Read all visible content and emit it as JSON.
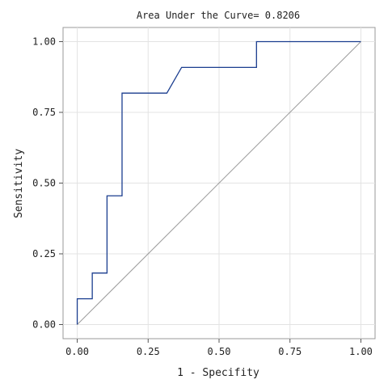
{
  "chart_data": {
    "type": "line",
    "title": "Area Under the Curve= 0.8206",
    "xlabel": "1 - Specifity",
    "ylabel": "Sensitivity",
    "xlim": [
      -0.05,
      1.05
    ],
    "ylim": [
      -0.05,
      1.05
    ],
    "x_ticks": [
      0,
      0.25,
      0.5,
      0.75,
      1
    ],
    "x_tick_labels": [
      "0.00",
      "0.25",
      "0.50",
      "0.75",
      "1.00"
    ],
    "y_ticks": [
      0,
      0.25,
      0.5,
      0.75,
      1
    ],
    "y_tick_labels": [
      "0.00",
      "0.25",
      "0.50",
      "0.75",
      "1.00"
    ],
    "grid": true,
    "series": [
      {
        "color": "#1a3d8f",
        "points": [
          [
            0,
            0
          ],
          [
            0,
            0.091
          ],
          [
            0.053,
            0.091
          ],
          [
            0.053,
            0.182
          ],
          [
            0.105,
            0.182
          ],
          [
            0.105,
            0.455
          ],
          [
            0.158,
            0.455
          ],
          [
            0.158,
            0.818
          ],
          [
            0.316,
            0.818
          ],
          [
            0.368,
            0.909
          ],
          [
            0.632,
            0.909
          ],
          [
            0.632,
            1.0
          ],
          [
            1.0,
            1.0
          ]
        ]
      },
      {
        "color": "#9a9a9a",
        "points": [
          [
            0,
            0
          ],
          [
            1,
            1
          ]
        ]
      }
    ]
  }
}
